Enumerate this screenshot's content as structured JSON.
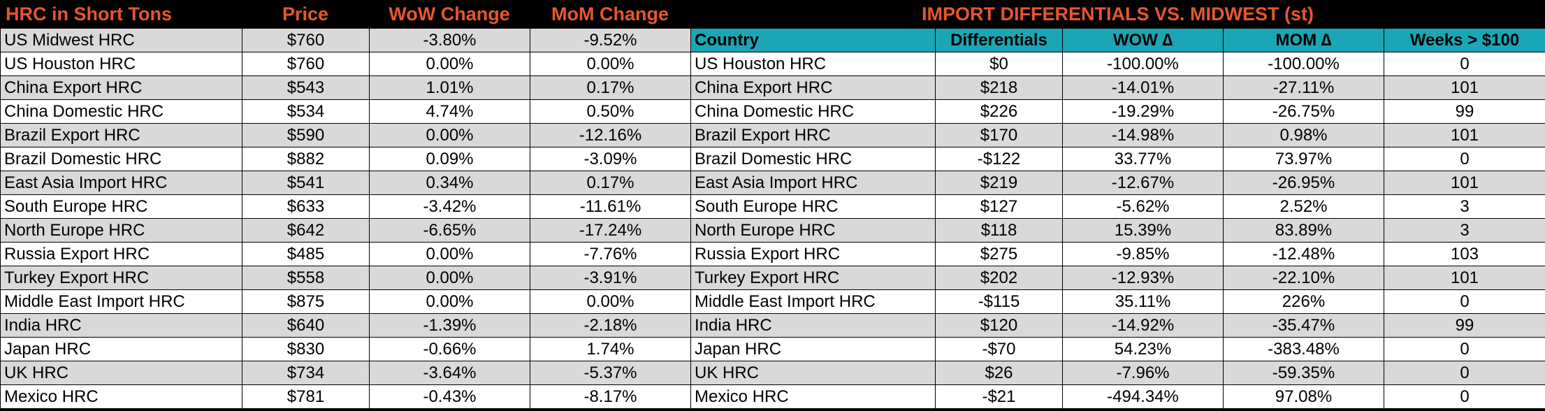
{
  "left": {
    "headers": [
      "HRC in Short Tons",
      "Price",
      "WoW Change",
      "MoM Change"
    ],
    "rows": [
      [
        "US Midwest HRC",
        "$760",
        "-3.80%",
        "-9.52%"
      ],
      [
        "US Houston HRC",
        "$760",
        "0.00%",
        "0.00%"
      ],
      [
        "China Export HRC",
        "$543",
        "1.01%",
        "0.17%"
      ],
      [
        "China Domestic HRC",
        "$534",
        "4.74%",
        "0.50%"
      ],
      [
        "Brazil Export HRC",
        "$590",
        "0.00%",
        "-12.16%"
      ],
      [
        "Brazil Domestic HRC",
        "$882",
        "0.09%",
        "-3.09%"
      ],
      [
        "East Asia Import HRC",
        "$541",
        "0.34%",
        "0.17%"
      ],
      [
        "South Europe HRC",
        "$633",
        "-3.42%",
        "-11.61%"
      ],
      [
        "North Europe HRC",
        "$642",
        "-6.65%",
        "-17.24%"
      ],
      [
        "Russia Export HRC",
        "$485",
        "0.00%",
        "-7.76%"
      ],
      [
        "Turkey Export HRC",
        "$558",
        "0.00%",
        "-3.91%"
      ],
      [
        "Middle East Import HRC",
        "$875",
        "0.00%",
        "0.00%"
      ],
      [
        "India HRC",
        "$640",
        "-1.39%",
        "-2.18%"
      ],
      [
        "Japan HRC",
        "$830",
        "-0.66%",
        "1.74%"
      ],
      [
        "UK HRC",
        "$734",
        "-3.64%",
        "-5.37%"
      ],
      [
        "Mexico HRC",
        "$781",
        "-0.43%",
        "-8.17%"
      ]
    ]
  },
  "right": {
    "title": "IMPORT DIFFERENTIALS VS. MIDWEST (st)",
    "headers": [
      "Country",
      "Differentials",
      "WOW ∆",
      "MOM ∆",
      "Weeks > $100"
    ],
    "rows": [
      [
        "US Houston HRC",
        "$0",
        "-100.00%",
        "-100.00%",
        "0"
      ],
      [
        "China Export HRC",
        "$218",
        "-14.01%",
        "-27.11%",
        "101"
      ],
      [
        "China Domestic HRC",
        "$226",
        "-19.29%",
        "-26.75%",
        "99"
      ],
      [
        "Brazil Export HRC",
        "$170",
        "-14.98%",
        "0.98%",
        "101"
      ],
      [
        "Brazil Domestic HRC",
        "-$122",
        "33.77%",
        "73.97%",
        "0"
      ],
      [
        "East Asia Import HRC",
        "$219",
        "-12.67%",
        "-26.95%",
        "101"
      ],
      [
        "South Europe HRC",
        "$127",
        "-5.62%",
        "2.52%",
        "3"
      ],
      [
        "North Europe HRC",
        "$118",
        "15.39%",
        "83.89%",
        "3"
      ],
      [
        "Russia Export HRC",
        "$275",
        "-9.85%",
        "-12.48%",
        "103"
      ],
      [
        "Turkey Export HRC",
        "$202",
        "-12.93%",
        "-22.10%",
        "101"
      ],
      [
        "Middle East Import HRC",
        "-$115",
        "35.11%",
        "226%",
        "0"
      ],
      [
        "India HRC",
        "$120",
        "-14.92%",
        "-35.47%",
        "99"
      ],
      [
        "Japan HRC",
        "-$70",
        "54.23%",
        "-383.48%",
        "0"
      ],
      [
        "UK HRC",
        "$26",
        "-7.96%",
        "-59.35%",
        "0"
      ],
      [
        "Mexico HRC",
        "-$21",
        "-494.34%",
        "97.08%",
        "0"
      ]
    ]
  },
  "colors": {
    "title_orange": "#e8562a",
    "header_teal": "#1aa6b4",
    "row_gray": "#d9d9d9",
    "row_white": "#ffffff"
  }
}
